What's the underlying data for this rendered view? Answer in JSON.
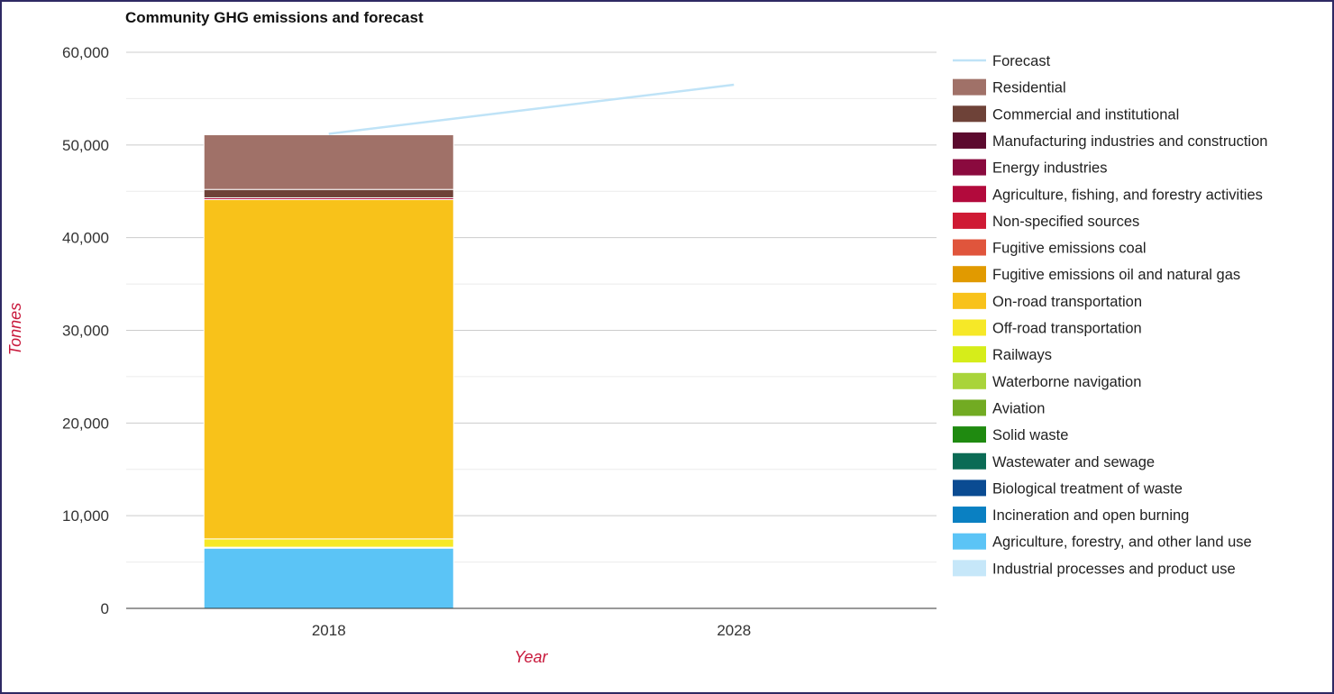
{
  "chart_data": {
    "type": "bar",
    "stacked": true,
    "title": "Community GHG emissions and forecast",
    "xlabel": "Year",
    "ylabel": "Tonnes",
    "categories": [
      "2018",
      "2028"
    ],
    "ylim": [
      0,
      60000
    ],
    "yticks": [
      0,
      10000,
      20000,
      30000,
      40000,
      50000,
      60000
    ],
    "ytick_labels": [
      "0",
      "10,000",
      "20,000",
      "30,000",
      "40,000",
      "50,000",
      "60,000"
    ],
    "minor_gridlines": true,
    "legend_position": "right",
    "forecast": {
      "name": "Forecast",
      "color": "#bfe3f7",
      "points": [
        {
          "x": "2018",
          "y": 51200
        },
        {
          "x": "2028",
          "y": 56500
        }
      ]
    },
    "series": [
      {
        "name": "Industrial processes and product use",
        "color": "#c6e7f9",
        "values": [
          0,
          0
        ]
      },
      {
        "name": "Agriculture, forestry, and other land use",
        "color": "#5bc4f6",
        "values": [
          6500,
          0
        ]
      },
      {
        "name": "Incineration and open burning",
        "color": "#0a80c2",
        "values": [
          0,
          0
        ]
      },
      {
        "name": "Biological treatment of waste",
        "color": "#0a4b92",
        "values": [
          0,
          0
        ]
      },
      {
        "name": "Wastewater and sewage",
        "color": "#0b6b55",
        "values": [
          0,
          0
        ]
      },
      {
        "name": "Solid waste",
        "color": "#1f8a10",
        "values": [
          0,
          0
        ]
      },
      {
        "name": "Aviation",
        "color": "#72ab22",
        "values": [
          100,
          0
        ]
      },
      {
        "name": "Waterborne navigation",
        "color": "#a9d43a",
        "values": [
          0,
          0
        ]
      },
      {
        "name": "Railways",
        "color": "#d6ed1a",
        "values": [
          0,
          0
        ]
      },
      {
        "name": "Off-road transportation",
        "color": "#f6e827",
        "values": [
          900,
          0
        ]
      },
      {
        "name": "On-road transportation",
        "color": "#f8c21a",
        "values": [
          36600,
          0
        ]
      },
      {
        "name": "Fugitive emissions oil and natural gas",
        "color": "#e19a00",
        "values": [
          0,
          0
        ]
      },
      {
        "name": "Fugitive emissions coal",
        "color": "#e0553c",
        "values": [
          0,
          0
        ]
      },
      {
        "name": "Non-specified sources",
        "color": "#cf1a34",
        "values": [
          0,
          0
        ]
      },
      {
        "name": "Agriculture, fishing, and forestry activities",
        "color": "#b20a3c",
        "values": [
          200,
          0
        ]
      },
      {
        "name": "Energy industries",
        "color": "#8a0a3e",
        "values": [
          0,
          0
        ]
      },
      {
        "name": "Manufacturing industries and construction",
        "color": "#5c0a2e",
        "values": [
          0,
          0
        ]
      },
      {
        "name": "Commercial and institutional",
        "color": "#6e4238",
        "values": [
          900,
          0
        ]
      },
      {
        "name": "Residential",
        "color": "#a07168",
        "values": [
          5900,
          0
        ]
      }
    ],
    "legend_order": [
      "Forecast",
      "Residential",
      "Commercial and institutional",
      "Manufacturing industries and construction",
      "Energy industries",
      "Agriculture, fishing, and forestry activities",
      "Non-specified sources",
      "Fugitive emissions coal",
      "Fugitive emissions oil and natural gas",
      "On-road transportation",
      "Off-road transportation",
      "Railways",
      "Waterborne navigation",
      "Aviation",
      "Solid waste",
      "Wastewater and sewage",
      "Biological treatment of waste",
      "Incineration and open burning",
      "Agriculture, forestry, and other land use",
      "Industrial processes and product use"
    ]
  }
}
